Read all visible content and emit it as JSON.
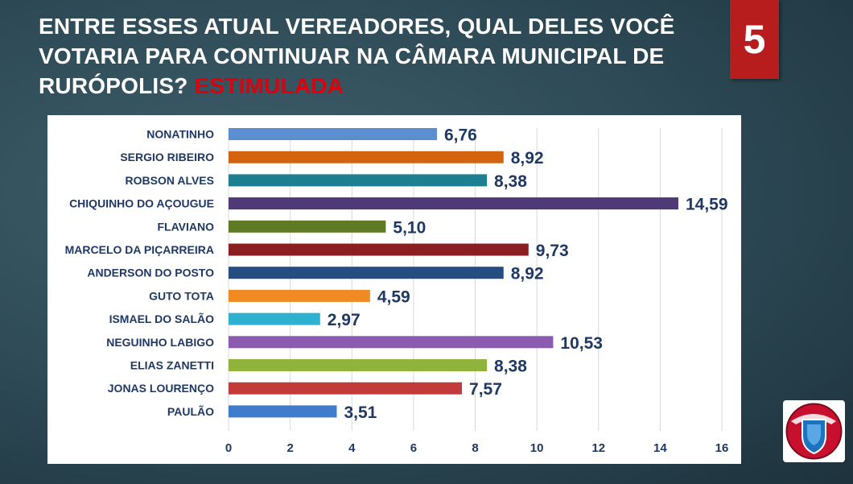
{
  "header": {
    "title_main": "ENTRE ESSES ATUAL VEREADORES, QUAL DELES VOCÊ VOTARIA PARA CONTINUAR NA CÂMARA MUNICIPAL DE RURÓPOLIS?",
    "title_highlight": "ESTIMULADA",
    "slide_number": "5"
  },
  "colors": {
    "background": "#2c4854",
    "highlight": "#e0000c",
    "slide_badge": "#b81d1d",
    "label_text": "#1f3864"
  },
  "logo": {
    "icon": "shield-logo-icon"
  },
  "chart_data": {
    "type": "bar",
    "orientation": "horizontal",
    "categories": [
      "NONATINHO",
      "SERGIO RIBEIRO",
      "ROBSON ALVES",
      "CHIQUINHO DO AÇOUGUE",
      "FLAVIANO",
      "MARCELO DA PIÇARREIRA",
      "ANDERSON DO POSTO",
      "GUTO TOTA",
      "ISMAEL DO SALÃO",
      "NEGUINHO LABIGO",
      "ELIAS ZANETTI",
      "JONAS LOURENÇO",
      "PAULÃO"
    ],
    "values": [
      6.76,
      8.92,
      8.38,
      14.59,
      5.1,
      9.73,
      8.92,
      4.59,
      2.97,
      10.53,
      8.38,
      7.57,
      3.51
    ],
    "value_labels": [
      "6,76",
      "8,92",
      "8,38",
      "14,59",
      "5,10",
      "9,73",
      "8,92",
      "4,59",
      "2,97",
      "10,53",
      "8,38",
      "7,57",
      "3,51"
    ],
    "bar_colors": [
      "#5b8fd0",
      "#d4630f",
      "#1f7f92",
      "#4f3a78",
      "#5f7a25",
      "#8a1e20",
      "#244d82",
      "#f08a23",
      "#2eb0d0",
      "#8a5bb0",
      "#8fb33b",
      "#c33a3a",
      "#3f7dcc"
    ],
    "xlim": [
      0,
      16
    ],
    "xticks": [
      0,
      2,
      4,
      6,
      8,
      10,
      12,
      14,
      16
    ],
    "grid": true,
    "legend": "none"
  }
}
